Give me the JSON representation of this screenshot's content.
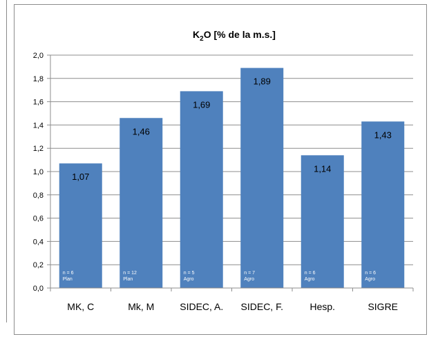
{
  "chart_data": {
    "type": "bar",
    "title": "K2O [% de la m.s.]",
    "title_parts": {
      "main": "K",
      "sub": "2",
      "rest": "O [% de la m.s.]"
    },
    "xlabel": "",
    "ylabel": "",
    "ylim": [
      0,
      2.0
    ],
    "yticks": [
      "0,0",
      "0,2",
      "0,4",
      "0,6",
      "0,8",
      "1,0",
      "1,2",
      "1,4",
      "1,6",
      "1,8",
      "2,0"
    ],
    "grid": true,
    "legend": "none",
    "bar_color": "#4f81bd",
    "categories": [
      "MK, C",
      "Mk, M",
      "SIDEC, A.",
      "SIDEC, F.",
      "Hesp.",
      "SIGRE"
    ],
    "values": [
      1.07,
      1.46,
      1.69,
      1.89,
      1.14,
      1.43
    ],
    "value_labels": [
      "1,07",
      "1,46",
      "1,69",
      "1,89",
      "1,14",
      "1,43"
    ],
    "n_labels": [
      "n = 6",
      "n = 12",
      "n = 5",
      "n = 7",
      "n = 6",
      "n = 6"
    ],
    "group_labels": [
      "Plan",
      "Plan",
      "Agro",
      "Agro",
      "Agro",
      "Agro"
    ]
  }
}
